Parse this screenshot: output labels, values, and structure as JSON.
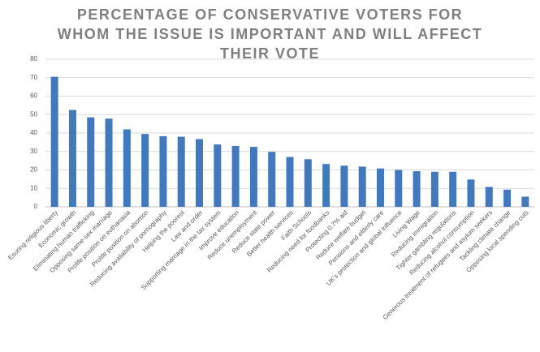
{
  "chart_data": {
    "type": "bar",
    "title": "PERCENTAGE OF CONSERVATIVE VOTERS FOR WHOM THE ISSUE IS IMPORTANT AND WILL AFFECT THEIR VOTE",
    "categories": [
      "Esuring religious liberty",
      "Economic growth",
      "Eliminating human trafficking",
      "Opposing same-sex marriage",
      "Prolife position on euthanasia",
      "Prolife position on abortion",
      "Reducing availability of pornography",
      "Helping the poorest",
      "Law and order",
      "Supporting marriage in the tax system",
      "Improve education",
      "Reduce unemployment",
      "Reduce state power",
      "Better health services",
      "Faith Schools",
      "Reducing need for foodbanks",
      "Protecting 0.7% aid",
      "Reduce welfare budget",
      "Pensions and elderly care",
      "UK's protection and global influence",
      "Living Wage",
      "Reducing immigration",
      "Tighter gambling regulations",
      "Reducing alcohol consumption",
      "Generous treatment of refugees and asylum seekers",
      "Tackling climate change",
      "Opposing local spending cuts"
    ],
    "values": [
      70.5,
      52.5,
      48.5,
      47.8,
      42,
      39.5,
      38.3,
      38,
      36.7,
      33.8,
      33,
      32.5,
      29.8,
      27,
      25.8,
      23.2,
      22.3,
      21.8,
      20.8,
      20,
      19.3,
      19,
      19,
      14.8,
      10.8,
      9.3,
      5.5
    ],
    "color": "#4279be",
    "ylim": [
      0,
      80
    ],
    "yticks": [
      0,
      10,
      20,
      30,
      40,
      50,
      60,
      70,
      80
    ],
    "grid": true
  }
}
